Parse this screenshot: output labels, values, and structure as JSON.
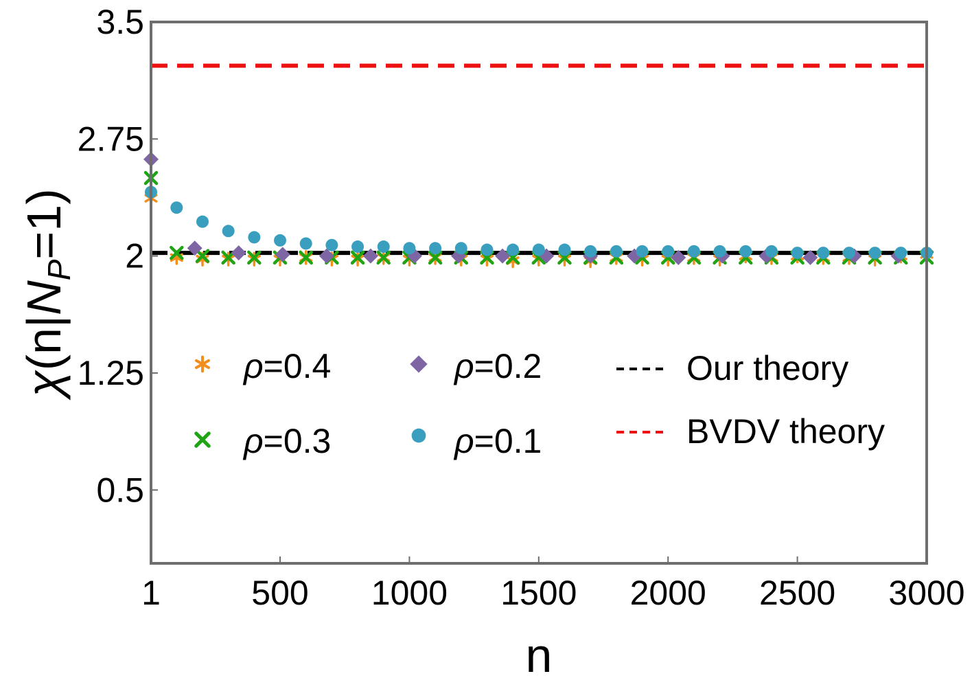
{
  "chart_data": {
    "type": "scatter",
    "title": "",
    "xlabel": "n",
    "ylabel_parts": {
      "chi": "χ",
      "open": "(n|",
      "N": "N",
      "sub": "P",
      "close": "=1)"
    },
    "xlim": [
      1,
      3000
    ],
    "ylim": [
      0.03,
      3.5
    ],
    "x_ticks": [
      1,
      500,
      1000,
      1500,
      2000,
      2500,
      3000
    ],
    "x_tick_labels": [
      "1",
      "500",
      "1000",
      "1500",
      "2000",
      "2500",
      "3000"
    ],
    "y_ticks": [
      0.5,
      1.25,
      2,
      2.75,
      3.5
    ],
    "y_tick_labels": [
      "0.5",
      "1.25",
      "2",
      "2.75",
      "3.5"
    ],
    "grid": false,
    "legend_position": "center",
    "series": [
      {
        "name": "ρ=0.4",
        "symbol": "ρ",
        "label_value": "=0.4",
        "marker": "asterisk",
        "color": "#f28e1c",
        "x": [
          1,
          100,
          200,
          300,
          400,
          500,
          600,
          700,
          800,
          900,
          1000,
          1100,
          1200,
          1300,
          1400,
          1500,
          1600,
          1700,
          1800,
          1900,
          2000,
          2100,
          2200,
          2300,
          2400,
          2500,
          2600,
          2700,
          2800,
          2900,
          3000
        ],
        "y": [
          2.37,
          1.99,
          1.98,
          1.98,
          1.98,
          1.98,
          1.99,
          1.98,
          1.98,
          1.99,
          1.98,
          1.99,
          1.98,
          1.98,
          1.97,
          1.98,
          1.98,
          1.97,
          1.99,
          1.98,
          1.98,
          1.99,
          1.98,
          2.0,
          1.99,
          2.0,
          1.99,
          1.99,
          1.98,
          2.0,
          2.01
        ]
      },
      {
        "name": "ρ=0.3",
        "symbol": "ρ",
        "label_value": "=0.3",
        "marker": "cross",
        "color": "#1fa514",
        "x": [
          1,
          100,
          200,
          300,
          400,
          500,
          600,
          700,
          800,
          900,
          1000,
          1100,
          1200,
          1300,
          1400,
          1500,
          1600,
          1700,
          1800,
          1900,
          2000,
          2100,
          2200,
          2300,
          2400,
          2500,
          2600,
          2700,
          2800,
          2900,
          3000
        ],
        "y": [
          2.5,
          2.02,
          2.0,
          1.99,
          1.99,
          1.99,
          1.99,
          1.99,
          1.99,
          1.99,
          1.99,
          1.99,
          1.99,
          1.99,
          1.99,
          1.99,
          1.99,
          1.99,
          1.99,
          1.99,
          1.99,
          1.99,
          1.99,
          1.99,
          1.99,
          1.99,
          1.99,
          1.99,
          1.99,
          1.99,
          1.99
        ]
      },
      {
        "name": "ρ=0.2",
        "symbol": "ρ",
        "label_value": "=0.2",
        "marker": "diamond",
        "color": "#7e66a4",
        "x": [
          1,
          170,
          340,
          510,
          680,
          850,
          1020,
          1190,
          1360,
          1530,
          1700,
          1870,
          2040,
          2210,
          2380,
          2550,
          2720,
          2890
        ],
        "y": [
          2.62,
          2.05,
          2.02,
          2.01,
          2.0,
          2.0,
          2.0,
          2.0,
          2.0,
          2.0,
          2.0,
          2.0,
          1.99,
          2.0,
          2.0,
          1.99,
          2.0,
          2.0
        ]
      },
      {
        "name": "ρ=0.1",
        "symbol": "ρ",
        "label_value": "=0.1",
        "marker": "circle",
        "color": "#3a9fbf",
        "x": [
          1,
          100,
          200,
          300,
          400,
          500,
          600,
          700,
          800,
          900,
          1000,
          1100,
          1200,
          1300,
          1400,
          1500,
          1600,
          1700,
          1800,
          1900,
          2000,
          2100,
          2200,
          2300,
          2400,
          2500,
          2600,
          2700,
          2800,
          2900,
          3000
        ],
        "y": [
          2.41,
          2.31,
          2.22,
          2.16,
          2.12,
          2.1,
          2.08,
          2.07,
          2.06,
          2.06,
          2.05,
          2.05,
          2.05,
          2.04,
          2.04,
          2.04,
          2.04,
          2.03,
          2.03,
          2.03,
          2.03,
          2.03,
          2.03,
          2.03,
          2.03,
          2.02,
          2.02,
          2.02,
          2.02,
          2.02,
          2.02
        ]
      }
    ],
    "reference_lines": [
      {
        "name": "Our theory",
        "y": 2.02,
        "style": "dashed",
        "color": "#000000"
      },
      {
        "name": "BVDV theory",
        "y": 3.22,
        "style": "dashed",
        "color": "#ee1111"
      }
    ]
  }
}
